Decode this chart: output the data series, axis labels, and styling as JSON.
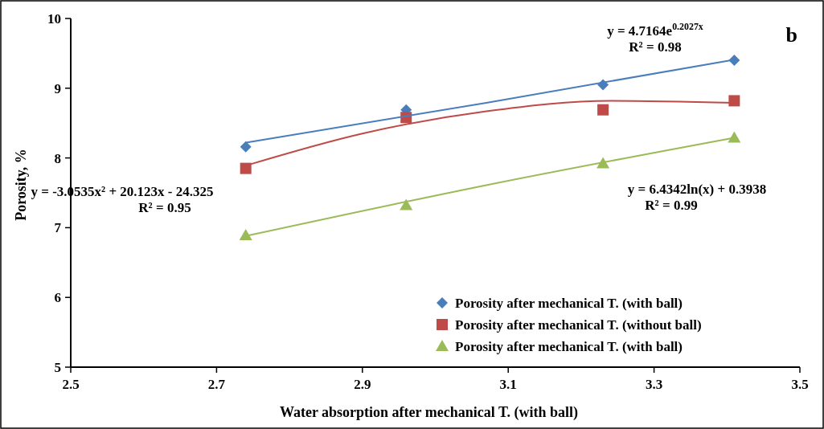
{
  "chart_data": {
    "type": "scatter",
    "xlabel": "Water absorption after mechanical T. (with ball)",
    "ylabel": "Porosity, %",
    "xlim": [
      2.5,
      3.5
    ],
    "xticks": [
      2.5,
      2.7,
      2.9,
      3.1,
      3.3,
      3.5
    ],
    "ylim": [
      5,
      10
    ],
    "yticks": [
      5,
      6,
      7,
      8,
      9,
      10
    ],
    "grid": false,
    "legend": "bottom right",
    "series": [
      {
        "name": "Porosity after mechanical T. (with ball)",
        "color": "#4a7ebb",
        "marker": "diamond",
        "x": [
          2.74,
          2.96,
          3.23,
          3.41
        ],
        "values": [
          8.16,
          8.69,
          9.05,
          9.4
        ]
      },
      {
        "name": "Porosity after mechanical T. (without ball)",
        "color": "#be4b48",
        "marker": "square",
        "x": [
          2.74,
          2.96,
          3.23,
          3.41
        ],
        "values": [
          7.85,
          8.58,
          8.69,
          8.82
        ]
      },
      {
        "name": "Porosity after mechanical T. (with ball)",
        "color": "#9bbb59",
        "marker": "triangle",
        "x": [
          2.74,
          2.96,
          3.23,
          3.41
        ],
        "values": [
          6.89,
          7.32,
          7.92,
          8.29
        ]
      },
      {
        "type": "line",
        "color": "#4a7ebb",
        "marker": "none",
        "x": [
          2.74,
          3.07,
          3.41
        ],
        "values": [
          8.22,
          8.79,
          9.41
        ]
      },
      {
        "type": "line",
        "color": "#be4b48",
        "marker": "none",
        "x": [
          2.74,
          2.9,
          3.07,
          3.24,
          3.41
        ],
        "values": [
          7.89,
          8.35,
          8.67,
          8.82,
          8.79
        ]
      },
      {
        "type": "line",
        "color": "#9bbb59",
        "marker": "none",
        "x": [
          2.74,
          3.07,
          3.41
        ],
        "values": [
          6.88,
          7.61,
          8.29
        ]
      }
    ],
    "annotations": [
      "y = 4.7164e$^{0.2027x}$",
      "R² = 0.98",
      "y = -3.0535x² + 20.123x - 24.325",
      "R² = 0.95",
      "y = 6.4342ln(x) + 0.3938",
      "R² = 0.99",
      "b"
    ]
  }
}
